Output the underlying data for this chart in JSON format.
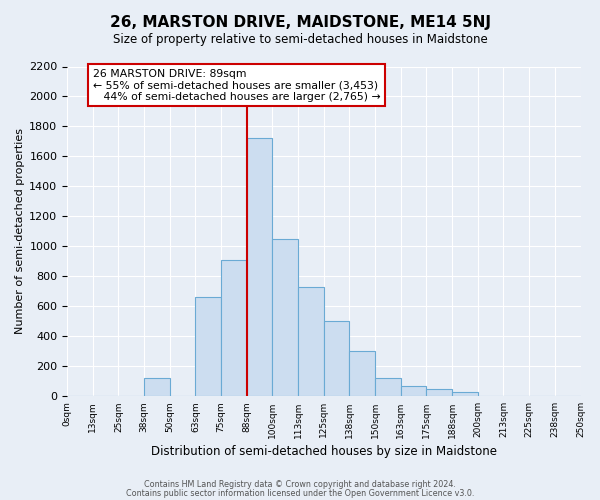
{
  "title": "26, MARSTON DRIVE, MAIDSTONE, ME14 5NJ",
  "subtitle": "Size of property relative to semi-detached houses in Maidstone",
  "xlabel": "Distribution of semi-detached houses by size in Maidstone",
  "ylabel": "Number of semi-detached properties",
  "bin_labels": [
    "0sqm",
    "13sqm",
    "25sqm",
    "38sqm",
    "50sqm",
    "63sqm",
    "75sqm",
    "88sqm",
    "100sqm",
    "113sqm",
    "125sqm",
    "138sqm",
    "150sqm",
    "163sqm",
    "175sqm",
    "188sqm",
    "200sqm",
    "213sqm",
    "225sqm",
    "238sqm",
    "250sqm"
  ],
  "bar_values": [
    0,
    0,
    0,
    120,
    0,
    660,
    910,
    1720,
    1050,
    730,
    500,
    300,
    120,
    70,
    50,
    30,
    0,
    0,
    0,
    0
  ],
  "bar_color": "#ccddf0",
  "bar_edge_color": "#6aaad4",
  "marker_bin_index": 7,
  "marker_label": "26 MARSTON DRIVE: 89sqm",
  "smaller_pct": "55%",
  "smaller_count": "3,453",
  "larger_pct": "44%",
  "larger_count": "2,765",
  "marker_line_color": "#cc0000",
  "box_edge_color": "#cc0000",
  "ylim": [
    0,
    2200
  ],
  "yticks": [
    0,
    200,
    400,
    600,
    800,
    1000,
    1200,
    1400,
    1600,
    1800,
    2000,
    2200
  ],
  "footnote1": "Contains HM Land Registry data © Crown copyright and database right 2024.",
  "footnote2": "Contains public sector information licensed under the Open Government Licence v3.0.",
  "bg_color": "#e8eef6",
  "plot_bg_color": "#e8eef6"
}
